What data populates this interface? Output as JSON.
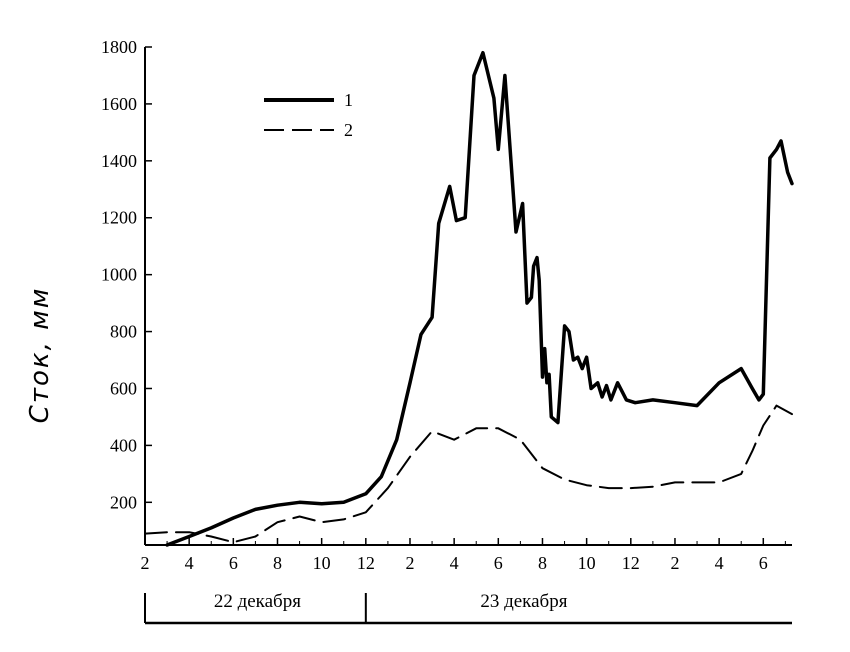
{
  "chart_data": {
    "type": "line",
    "title": "",
    "xlabel": "",
    "ylabel": "Сток, мм",
    "yticks": [
      200,
      400,
      600,
      800,
      1000,
      1200,
      1400,
      1600,
      1800
    ],
    "ylim": [
      50,
      1800
    ],
    "xlim": [
      2,
      31.3
    ],
    "xticks": [
      {
        "x": 2,
        "label": "2"
      },
      {
        "x": 4,
        "label": "4"
      },
      {
        "x": 6,
        "label": "6"
      },
      {
        "x": 8,
        "label": "8"
      },
      {
        "x": 10,
        "label": "10"
      },
      {
        "x": 12,
        "label": "12"
      },
      {
        "x": 14,
        "label": "2"
      },
      {
        "x": 16,
        "label": "4"
      },
      {
        "x": 18,
        "label": "6"
      },
      {
        "x": 20,
        "label": "8"
      },
      {
        "x": 22,
        "label": "10"
      },
      {
        "x": 24,
        "label": "12"
      },
      {
        "x": 26,
        "label": "2"
      },
      {
        "x": 28,
        "label": "4"
      },
      {
        "x": 30,
        "label": "6"
      }
    ],
    "day_labels": [
      {
        "label": "22 декабря",
        "from": 2,
        "to": 12
      },
      {
        "label": "23 декабря",
        "from": 12,
        "to": 31.3
      }
    ],
    "grid": false,
    "legend_position": "top-left",
    "series": [
      {
        "name": "1",
        "style": "solid",
        "x": [
          3,
          4,
          5,
          6,
          7,
          8,
          9,
          10,
          11,
          12,
          12.7,
          13.4,
          14,
          14.5,
          15,
          15.3,
          15.8,
          16.1,
          16.5,
          16.9,
          17.3,
          17.8,
          18,
          18.3,
          18.8,
          19.1,
          19.3,
          19.5,
          19.6,
          19.75,
          19.85,
          20,
          20.1,
          20.2,
          20.3,
          20.4,
          20.7,
          21,
          21.2,
          21.4,
          21.6,
          21.8,
          22,
          22.2,
          22.5,
          22.7,
          22.9,
          23.1,
          23.4,
          23.6,
          23.8,
          24.2,
          25,
          26,
          27,
          28,
          29,
          29.5,
          29.8,
          30,
          30.3,
          30.6,
          30.8,
          31.1,
          31.3
        ],
        "y": [
          50,
          80,
          110,
          145,
          175,
          190,
          200,
          195,
          200,
          230,
          290,
          420,
          620,
          790,
          850,
          1180,
          1310,
          1190,
          1200,
          1700,
          1780,
          1620,
          1440,
          1700,
          1150,
          1250,
          900,
          920,
          1030,
          1060,
          980,
          640,
          740,
          620,
          650,
          500,
          480,
          820,
          800,
          700,
          710,
          670,
          710,
          600,
          620,
          570,
          610,
          560,
          620,
          590,
          560,
          550,
          560,
          550,
          540,
          620,
          670,
          600,
          560,
          580,
          1410,
          1440,
          1470,
          1360,
          1320
        ]
      },
      {
        "name": "2",
        "style": "dashed",
        "x": [
          2,
          3,
          4,
          5,
          6,
          7,
          8,
          9,
          10,
          11,
          12,
          13,
          14,
          15,
          16,
          17,
          18,
          19,
          20,
          21,
          22,
          23,
          24,
          25,
          26,
          27,
          28,
          29,
          29.5,
          30,
          30.6,
          31.3
        ],
        "y": [
          90,
          95,
          95,
          80,
          60,
          80,
          130,
          150,
          130,
          140,
          165,
          250,
          360,
          450,
          420,
          460,
          460,
          420,
          320,
          280,
          260,
          250,
          250,
          255,
          270,
          270,
          270,
          300,
          380,
          470,
          540,
          510
        ]
      }
    ]
  }
}
